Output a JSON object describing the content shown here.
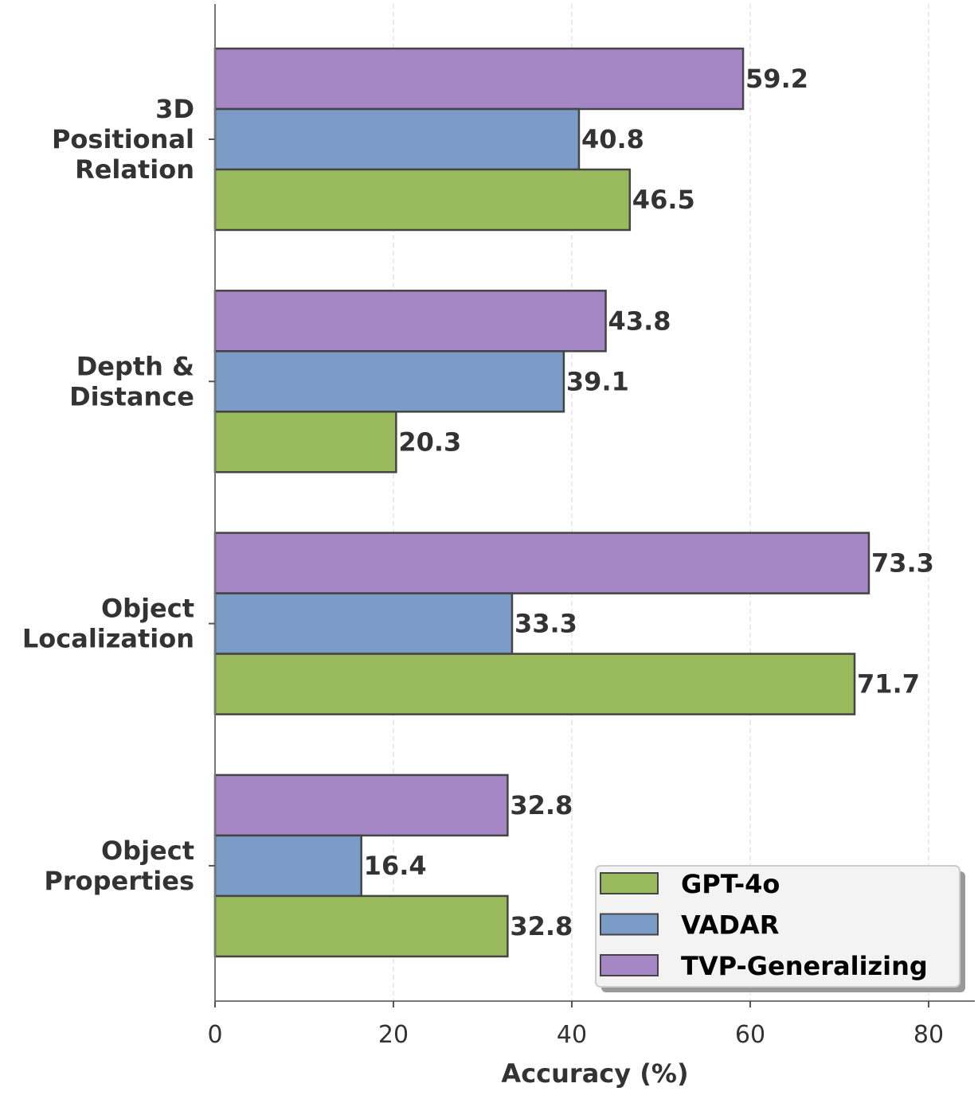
{
  "chart_data": {
    "type": "bar",
    "orientation": "horizontal",
    "title": "",
    "xlabel": "Accuracy (%)",
    "ylabel": "",
    "xlim": [
      0,
      85
    ],
    "xticks": [
      0,
      20,
      40,
      60,
      80
    ],
    "grid": "vertical dashed",
    "categories": [
      [
        "3D",
        "Positional",
        "Relation"
      ],
      [
        "Depth &",
        "Distance"
      ],
      [
        "Object",
        "Localization"
      ],
      [
        "Object",
        "Properties"
      ]
    ],
    "series": [
      {
        "name": "TVP-Generalizing",
        "color": "#a687c6",
        "values": [
          59.2,
          43.8,
          73.3,
          32.8
        ]
      },
      {
        "name": "VADAR",
        "color": "#7a9cc6",
        "values": [
          40.8,
          39.1,
          33.3,
          16.4
        ]
      },
      {
        "name": "GPT-4o",
        "color": "#99bb5e",
        "values": [
          46.5,
          20.3,
          71.7,
          32.8
        ]
      }
    ],
    "legend": {
      "placement": "lower-right",
      "entries": [
        "GPT-4o",
        "VADAR",
        "TVP-Generalizing"
      ],
      "colors": [
        "#99bb5e",
        "#7a9cc6",
        "#a687c6"
      ]
    }
  }
}
